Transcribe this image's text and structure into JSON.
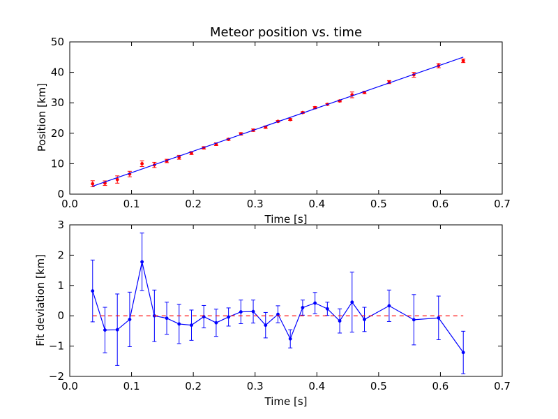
{
  "chart_data": [
    {
      "type": "scatter",
      "title": "Meteor position vs. time",
      "xlabel": "Time [s]",
      "ylabel": "Position [km]",
      "xlim": [
        0.0,
        0.7
      ],
      "ylim": [
        0,
        50
      ],
      "xticks": [
        "0.0",
        "0.1",
        "0.2",
        "0.3",
        "0.4",
        "0.5",
        "0.6",
        "0.7"
      ],
      "yticks": [
        "0",
        "10",
        "20",
        "30",
        "40",
        "50"
      ],
      "grid": false,
      "series": [
        {
          "kind": "points-with-error",
          "color": "#ff0000",
          "x": [
            0.037,
            0.057,
            0.077,
            0.097,
            0.117,
            0.137,
            0.157,
            0.177,
            0.197,
            0.217,
            0.237,
            0.257,
            0.277,
            0.297,
            0.317,
            0.337,
            0.357,
            0.377,
            0.397,
            0.417,
            0.437,
            0.457,
            0.477,
            0.517,
            0.557,
            0.597,
            0.637
          ],
          "y": [
            3.4,
            3.6,
            4.8,
            6.6,
            10.0,
            9.6,
            10.9,
            12.1,
            13.5,
            15.2,
            16.4,
            18.0,
            19.8,
            21.0,
            22.0,
            23.9,
            24.5,
            26.8,
            28.4,
            29.5,
            30.6,
            32.6,
            33.4,
            36.8,
            39.2,
            42.2,
            43.8
          ],
          "yerr": [
            1.0,
            0.75,
            1.2,
            0.9,
            0.95,
            0.85,
            0.55,
            0.65,
            0.5,
            0.4,
            0.45,
            0.3,
            0.4,
            0.4,
            0.4,
            0.25,
            0.3,
            0.25,
            0.35,
            0.25,
            0.3,
            0.95,
            0.4,
            0.5,
            0.8,
            0.7,
            0.6
          ]
        },
        {
          "kind": "line",
          "color": "#0000ff",
          "x": [
            0.037,
            0.637
          ],
          "y": [
            2.6,
            45.0
          ]
        }
      ]
    },
    {
      "type": "line",
      "title": "",
      "xlabel": "Time [s]",
      "ylabel": "Fit deviation [km]",
      "xlim": [
        0.0,
        0.7
      ],
      "ylim": [
        -2,
        3
      ],
      "xticks": [
        "0.0",
        "0.1",
        "0.2",
        "0.3",
        "0.4",
        "0.5",
        "0.6",
        "0.7"
      ],
      "yticks": [
        "−2",
        "−1",
        "0",
        "1",
        "2",
        "3"
      ],
      "grid": false,
      "series": [
        {
          "kind": "line-with-error",
          "color": "#0000ff",
          "x": [
            0.037,
            0.057,
            0.077,
            0.097,
            0.117,
            0.137,
            0.157,
            0.177,
            0.197,
            0.217,
            0.237,
            0.257,
            0.277,
            0.297,
            0.317,
            0.337,
            0.357,
            0.377,
            0.397,
            0.417,
            0.437,
            0.457,
            0.477,
            0.517,
            0.557,
            0.597,
            0.637
          ],
          "y": [
            0.82,
            -0.47,
            -0.46,
            -0.12,
            1.78,
            0.0,
            -0.08,
            -0.27,
            -0.31,
            -0.03,
            -0.23,
            -0.04,
            0.13,
            0.14,
            -0.31,
            0.05,
            -0.76,
            0.27,
            0.42,
            0.23,
            -0.17,
            0.45,
            -0.12,
            0.33,
            -0.13,
            -0.07,
            -1.21
          ],
          "yerr": [
            1.02,
            0.75,
            1.18,
            0.9,
            0.95,
            0.85,
            0.53,
            0.65,
            0.5,
            0.37,
            0.45,
            0.3,
            0.39,
            0.38,
            0.42,
            0.28,
            0.3,
            0.25,
            0.35,
            0.22,
            0.4,
            0.99,
            0.4,
            0.52,
            0.83,
            0.72,
            0.7
          ]
        },
        {
          "kind": "dashed-line",
          "color": "#ff0000",
          "x": [
            0.037,
            0.637
          ],
          "y": [
            0,
            0
          ]
        }
      ]
    }
  ]
}
